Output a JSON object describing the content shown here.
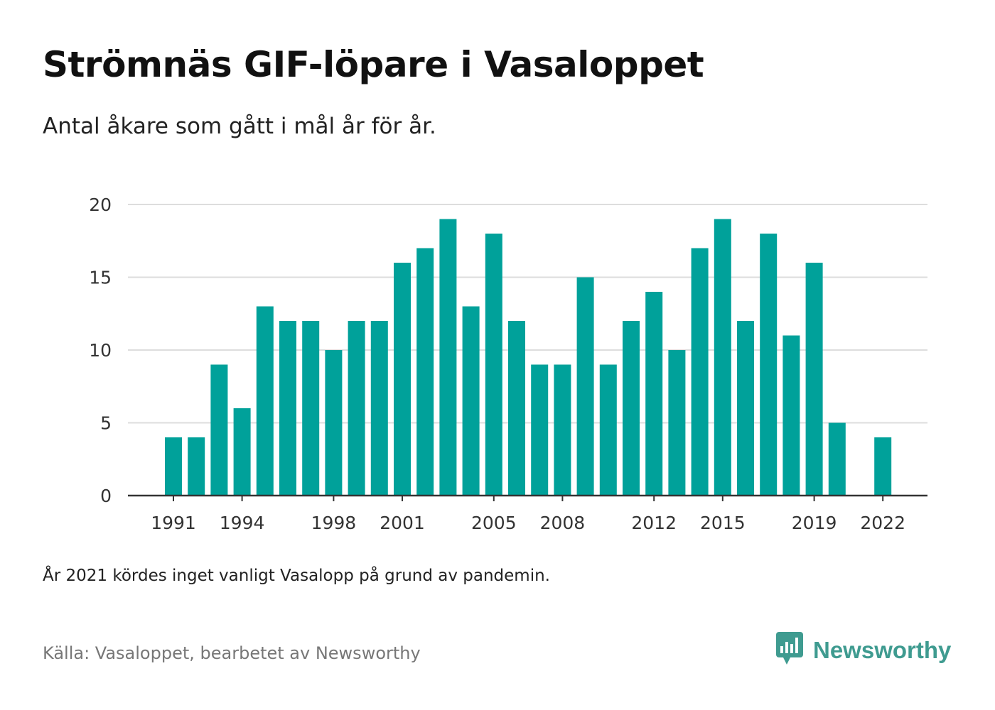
{
  "title": "Strömnäs GIF-löpare i Vasaloppet",
  "subtitle": "Antal åkare som gått i mål år för år.",
  "note": "År 2021 kördes inget vanligt Vasalopp på grund av pandemin.",
  "source": "Källa: Vasaloppet, bearbetet av Newsworthy",
  "brand": {
    "name": "Newsworthy",
    "icon": "newsworthy-logo-icon"
  },
  "colors": {
    "bar": "#00a19a",
    "grid": "#dddddd",
    "axis": "#333333",
    "brand": "#3f9b90"
  },
  "chart_data": {
    "type": "bar",
    "categories": [
      1991,
      1992,
      1993,
      1994,
      1995,
      1996,
      1997,
      1998,
      1999,
      2000,
      2001,
      2002,
      2003,
      2004,
      2005,
      2006,
      2007,
      2008,
      2009,
      2010,
      2011,
      2012,
      2013,
      2014,
      2015,
      2016,
      2017,
      2018,
      2019,
      2020,
      2021,
      2022
    ],
    "values": [
      4,
      4,
      9,
      6,
      13,
      12,
      12,
      10,
      12,
      12,
      16,
      17,
      19,
      13,
      18,
      12,
      9,
      9,
      15,
      9,
      12,
      14,
      10,
      17,
      19,
      12,
      18,
      11,
      16,
      5,
      null,
      4
    ],
    "x_tick_labels": [
      "1991",
      "1994",
      "1998",
      "2001",
      "2005",
      "2008",
      "2012",
      "2015",
      "2019",
      "2022"
    ],
    "y_ticks": [
      0,
      5,
      10,
      15,
      20
    ],
    "ylim": [
      0,
      20
    ],
    "xlabel": "",
    "ylabel": "",
    "grid": true
  }
}
